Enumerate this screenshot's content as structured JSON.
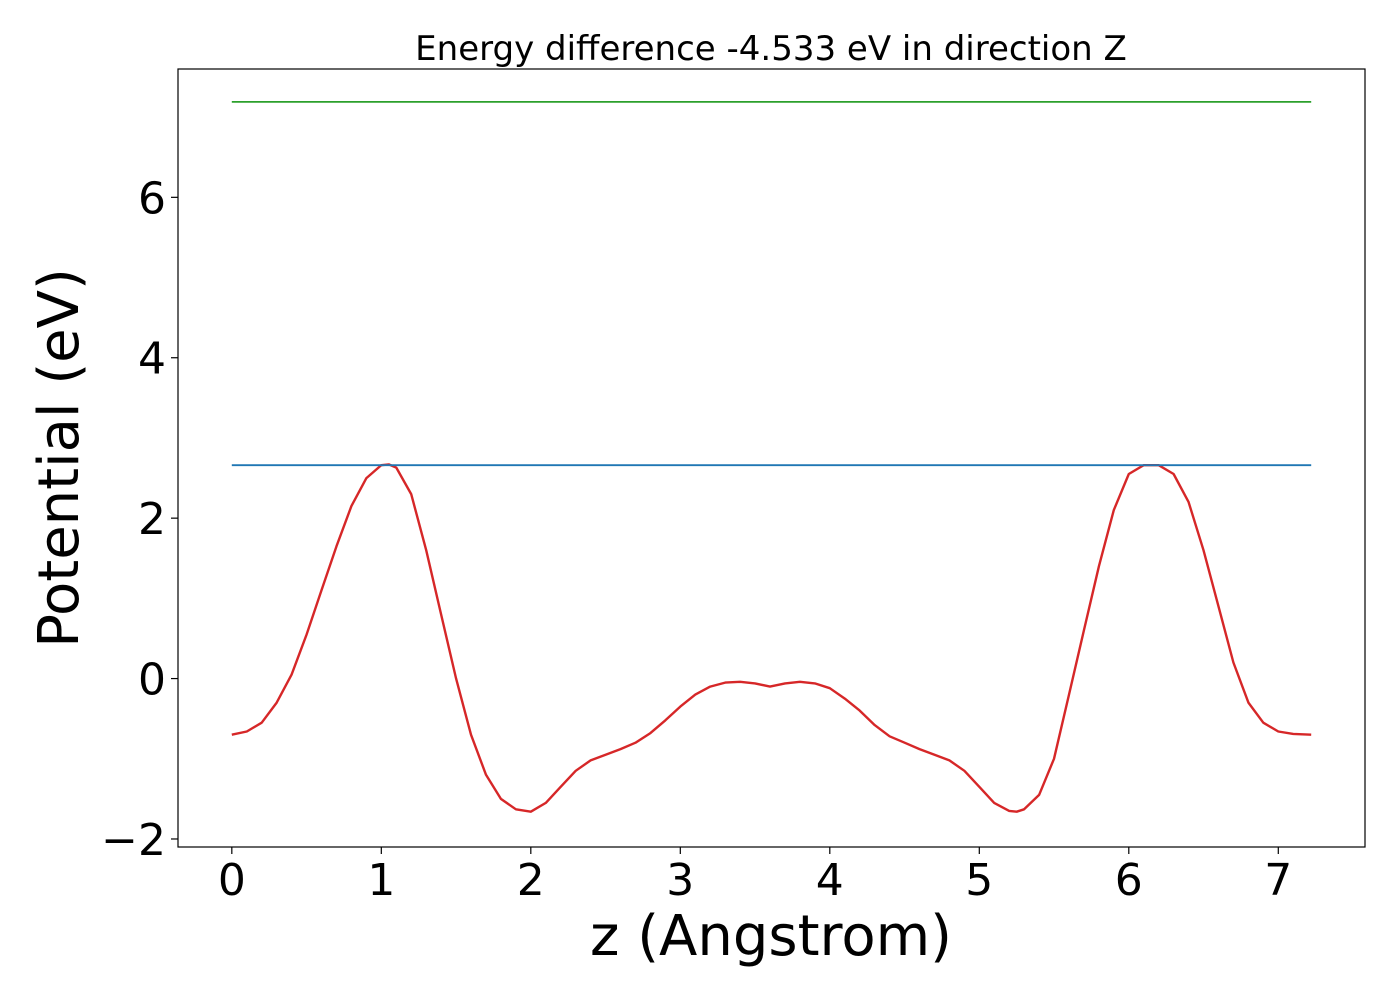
{
  "chart_data": {
    "type": "line",
    "title": "Energy difference -4.533 eV in direction Z",
    "xlabel": "z (Angstrom)",
    "ylabel": "Potential (eV)",
    "xlim": [
      -0.36,
      7.58
    ],
    "ylim": [
      -2.1,
      7.6
    ],
    "xticks": [
      0,
      1,
      2,
      3,
      4,
      5,
      6,
      7
    ],
    "xtick_labels": [
      "0",
      "1",
      "2",
      "3",
      "4",
      "5",
      "6",
      "7"
    ],
    "yticks": [
      -2,
      0,
      2,
      4,
      6
    ],
    "ytick_labels": [
      "−2",
      "0",
      "2",
      "4",
      "6"
    ],
    "grid": false,
    "legend": "none",
    "series": [
      {
        "color": "#d62728",
        "x": [
          0,
          0.1,
          0.2,
          0.3,
          0.4,
          0.5,
          0.6,
          0.7,
          0.8,
          0.9,
          1.0,
          1.05,
          1.1,
          1.2,
          1.3,
          1.4,
          1.5,
          1.6,
          1.7,
          1.8,
          1.9,
          2.0,
          2.1,
          2.2,
          2.3,
          2.4,
          2.5,
          2.6,
          2.7,
          2.8,
          2.9,
          3.0,
          3.1,
          3.2,
          3.3,
          3.4,
          3.5,
          3.6,
          3.7,
          3.8,
          3.9,
          4.0,
          4.1,
          4.2,
          4.3,
          4.4,
          4.5,
          4.6,
          4.7,
          4.8,
          4.9,
          5.0,
          5.1,
          5.2,
          5.25,
          5.3,
          5.4,
          5.5,
          5.6,
          5.7,
          5.8,
          5.9,
          6.0,
          6.1,
          6.2,
          6.3,
          6.4,
          6.5,
          6.6,
          6.7,
          6.8,
          6.9,
          7.0,
          7.1,
          7.22
        ],
        "y": [
          -0.7,
          -0.66,
          -0.55,
          -0.3,
          0.05,
          0.55,
          1.1,
          1.65,
          2.15,
          2.5,
          2.66,
          2.67,
          2.63,
          2.3,
          1.6,
          0.8,
          0.0,
          -0.7,
          -1.2,
          -1.5,
          -1.63,
          -1.66,
          -1.55,
          -1.35,
          -1.15,
          -1.02,
          -0.95,
          -0.88,
          -0.8,
          -0.68,
          -0.52,
          -0.35,
          -0.2,
          -0.1,
          -0.05,
          -0.04,
          -0.06,
          -0.1,
          -0.06,
          -0.04,
          -0.06,
          -0.12,
          -0.25,
          -0.4,
          -0.58,
          -0.72,
          -0.8,
          -0.88,
          -0.95,
          -1.02,
          -1.15,
          -1.35,
          -1.55,
          -1.65,
          -1.66,
          -1.63,
          -1.45,
          -1.0,
          -0.2,
          0.6,
          1.4,
          2.1,
          2.55,
          2.66,
          2.66,
          2.55,
          2.2,
          1.6,
          0.9,
          0.2,
          -0.3,
          -0.55,
          -0.66,
          -0.69,
          -0.7
        ]
      },
      {
        "color": "#1f77b4",
        "x": [
          0,
          7.22
        ],
        "y": [
          2.66,
          2.66
        ]
      },
      {
        "color": "#2ca02c",
        "x": [
          0,
          7.22
        ],
        "y": [
          7.19,
          7.19
        ]
      }
    ]
  }
}
